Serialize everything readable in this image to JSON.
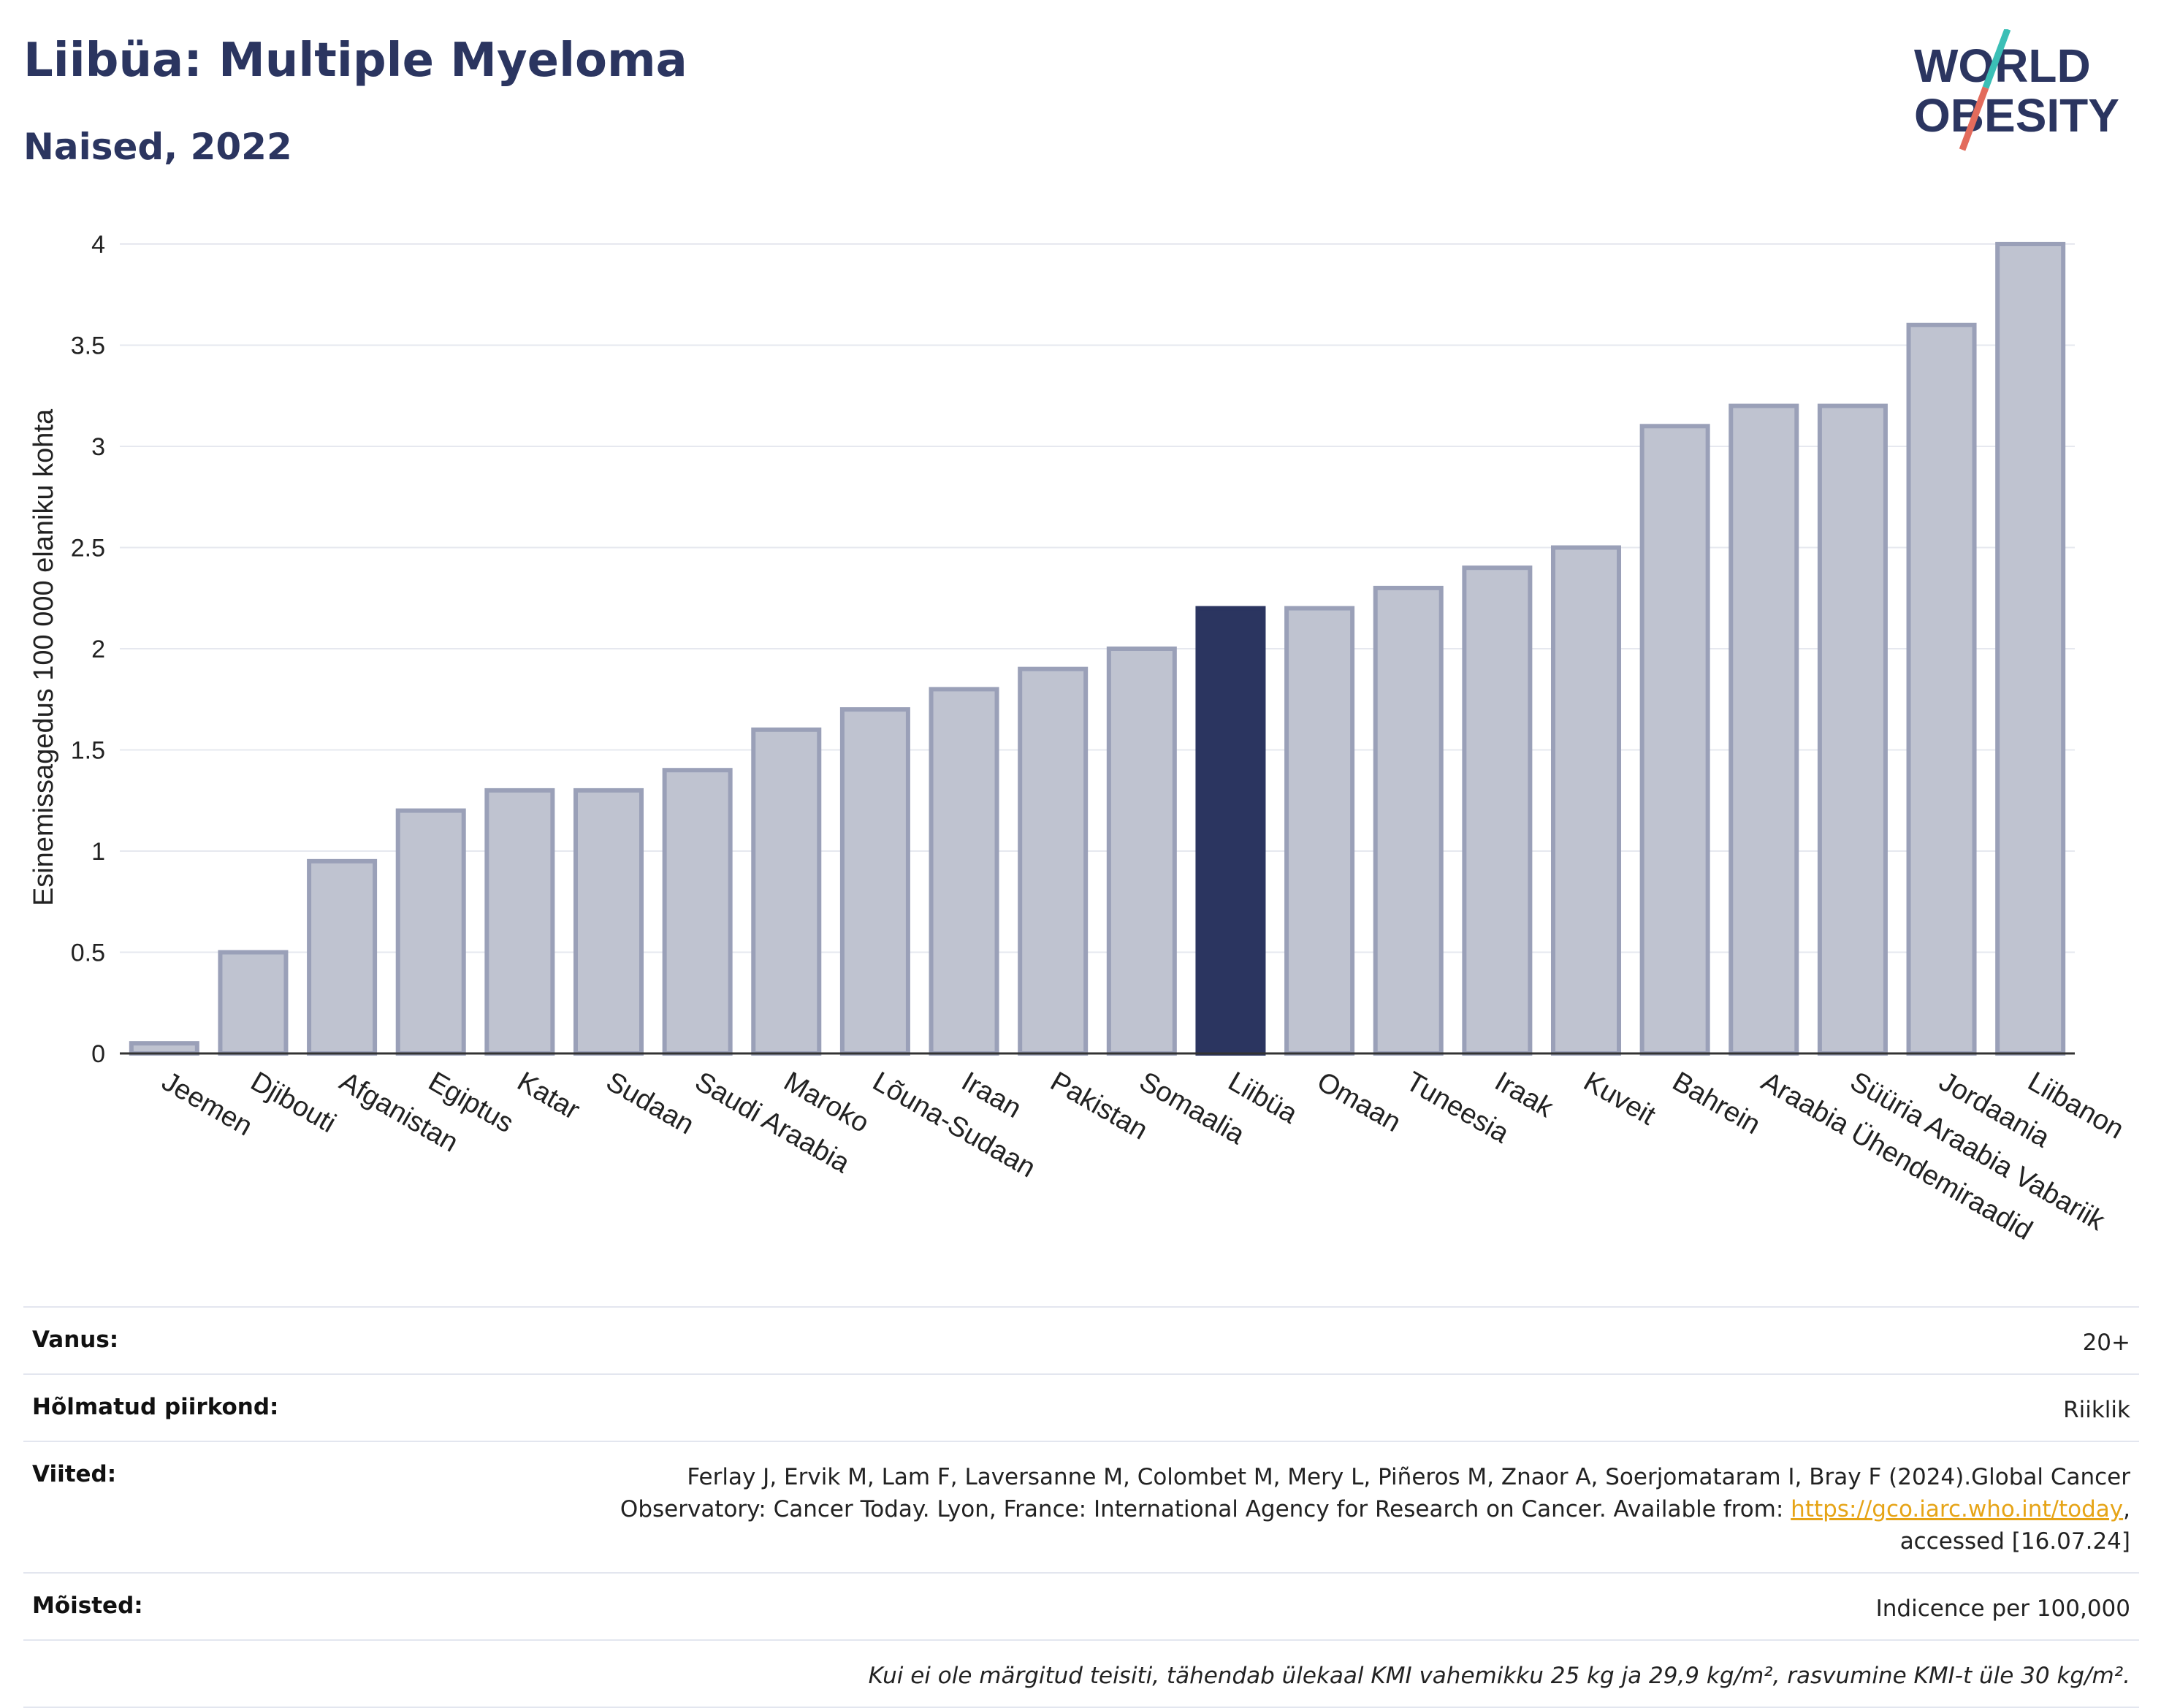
{
  "header": {
    "title": "Liibüa: Multiple Myeloma",
    "subtitle": "Naised, 2022"
  },
  "logo": {
    "line1": "WORLD",
    "line2": "OBESITY",
    "colors": {
      "text": "#2b3560",
      "accent_teal": "#3bbfb6",
      "accent_red": "#e36b5c"
    }
  },
  "chart_data": {
    "type": "bar",
    "title": "Liibüa: Multiple Myeloma",
    "subtitle": "Naised, 2022",
    "ylabel": "Esinemissagedus 100 000 elaniku kohta",
    "xlabel": "",
    "ylim": [
      0,
      4
    ],
    "yticks": [
      0,
      0.5,
      1,
      1.5,
      2,
      2.5,
      3,
      3.5,
      4
    ],
    "ytick_labels": [
      "0",
      "0.5",
      "1",
      "1.5",
      "2",
      "2.5",
      "3",
      "3.5",
      "4"
    ],
    "grid": true,
    "categories": [
      "Jeemen",
      "Djibouti",
      "Afganistan",
      "Egiptus",
      "Katar",
      "Sudaan",
      "Saudi Araabia",
      "Maroko",
      "Lõuna-Sudaan",
      "Iraan",
      "Pakistan",
      "Somaalia",
      "Liibüa",
      "Omaan",
      "Tuneesia",
      "Iraak",
      "Kuveit",
      "Bahrein",
      "Araabia Ühendemiraadid",
      "Süüria Araabia Vabariik",
      "Jordaania",
      "Liibanon"
    ],
    "values": [
      0.05,
      0.5,
      0.95,
      1.2,
      1.3,
      1.3,
      1.4,
      1.6,
      1.7,
      1.8,
      1.9,
      2.0,
      2.2,
      2.2,
      2.3,
      2.4,
      2.5,
      3.1,
      3.2,
      3.2,
      3.6,
      4.0
    ],
    "highlight": "Liibüa",
    "colors": {
      "bar": "#bfc3d0",
      "bar_border": "#9aa0b8",
      "highlight": "#2b3560",
      "grid": "#e6e8ef",
      "axis": "#333333"
    }
  },
  "info": {
    "rows": [
      {
        "label": "Vanus:",
        "value": "20+"
      },
      {
        "label": "Hõlmatud piirkond:",
        "value": "Riiklik"
      },
      {
        "label": "Viited:",
        "value_line1": "Ferlay J, Ervik M, Lam F, Laversanne M, Colombet M, Mery L, Piñeros M, Znaor A, Soerjomataram I, Bray F (2024).Global Cancer",
        "value_line2_pre": "Observatory: Cancer Today. Lyon, France: International Agency for Research on Cancer. Available from: ",
        "link_text": "https://gco.iarc.who.int/today",
        "value_line2_post": ",",
        "value_line3": "accessed [16.07.24]"
      },
      {
        "label": "Mõisted:",
        "value": "Indicence per 100,000"
      }
    ],
    "note": "Kui ei ole märgitud teisiti, tähendab ülekaal KMI vahemikku 25 kg ja 29,9 kg/m², rasvumine KMI-t üle 30 kg/m²."
  }
}
